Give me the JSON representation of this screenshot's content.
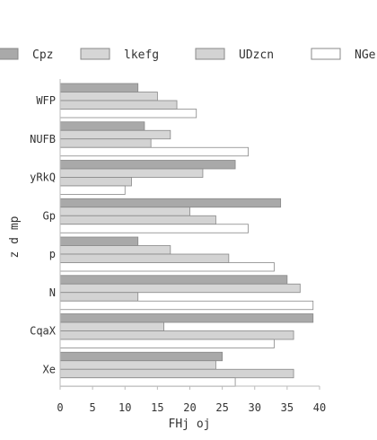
{
  "chart_data": {
    "type": "bar",
    "orientation": "horizontal",
    "title": "",
    "xlabel": "FHj oj",
    "ylabel": "z d mp",
    "xlim": [
      0,
      40
    ],
    "xticks": [
      "0",
      "5",
      "10",
      "15",
      "20",
      "25",
      "30",
      "35",
      "40"
    ],
    "grid": false,
    "legend_position": "top",
    "categories": [
      "WFP",
      "NUFB",
      "yRkQ",
      "Gp",
      "p",
      "N",
      "CqaX",
      "Xe"
    ],
    "series": [
      {
        "name": "Cpz",
        "color": "#a9a9a9",
        "values": [
          12,
          13,
          27,
          34,
          12,
          35,
          39,
          25
        ]
      },
      {
        "name": "lkefg",
        "color": "#d6d6d6",
        "values": [
          15,
          17,
          22,
          20,
          17,
          37,
          16,
          24
        ]
      },
      {
        "name": "UDzcn",
        "color": "#d3d3d3",
        "values": [
          18,
          14,
          11,
          24,
          26,
          12,
          36,
          36
        ]
      },
      {
        "name": "NGe",
        "color": "#ffffff",
        "values": [
          21,
          29,
          10,
          29,
          33,
          39,
          33,
          27
        ]
      }
    ]
  }
}
